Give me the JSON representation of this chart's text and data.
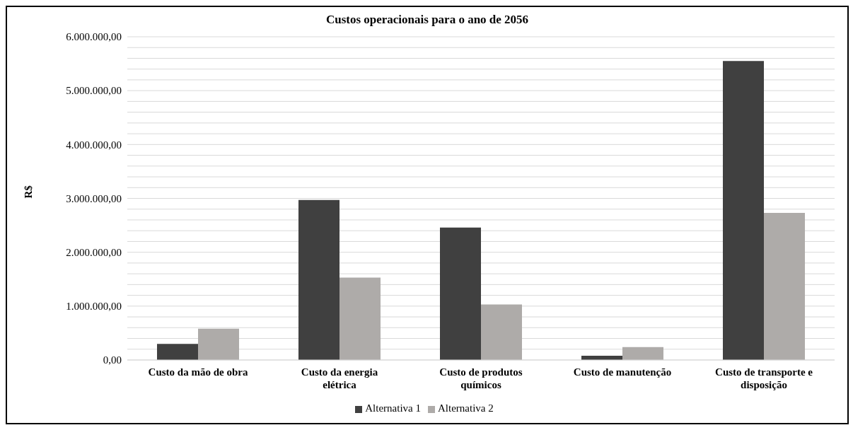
{
  "chart_data": {
    "type": "bar",
    "title": "Custos operacionais para o ano de 2056",
    "ylabel": "R$",
    "categories": [
      "Custo da mão de obra",
      "Custo da energia elétrica",
      "Custo de produtos químicos",
      "Custo de manutenção",
      "Custo de transporte e disposição"
    ],
    "series": [
      {
        "name": "Alternativa 1",
        "color": "#404040",
        "values": [
          300000,
          2970000,
          2460000,
          80000,
          5550000
        ]
      },
      {
        "name": "Alternativa 2",
        "color": "#aeaba9",
        "values": [
          580000,
          1530000,
          1030000,
          240000,
          2730000
        ]
      }
    ],
    "ylim": [
      0,
      6000000
    ],
    "yticks": [
      {
        "value": 0,
        "label": "0,00"
      },
      {
        "value": 200000,
        "label": null
      },
      {
        "value": 400000,
        "label": null
      },
      {
        "value": 600000,
        "label": null
      },
      {
        "value": 800000,
        "label": null
      },
      {
        "value": 1000000,
        "label": "1.000.000,00"
      },
      {
        "value": 1200000,
        "label": null
      },
      {
        "value": 1400000,
        "label": null
      },
      {
        "value": 1600000,
        "label": null
      },
      {
        "value": 1800000,
        "label": null
      },
      {
        "value": 2000000,
        "label": "2.000.000,00"
      },
      {
        "value": 2200000,
        "label": null
      },
      {
        "value": 2400000,
        "label": null
      },
      {
        "value": 2600000,
        "label": null
      },
      {
        "value": 2800000,
        "label": null
      },
      {
        "value": 3000000,
        "label": "3.000.000,00"
      },
      {
        "value": 3200000,
        "label": null
      },
      {
        "value": 3400000,
        "label": null
      },
      {
        "value": 3600000,
        "label": null
      },
      {
        "value": 3800000,
        "label": null
      },
      {
        "value": 4000000,
        "label": "4.000.000,00"
      },
      {
        "value": 4200000,
        "label": null
      },
      {
        "value": 4400000,
        "label": null
      },
      {
        "value": 4600000,
        "label": null
      },
      {
        "value": 4800000,
        "label": null
      },
      {
        "value": 5000000,
        "label": "5.000.000,00"
      },
      {
        "value": 5200000,
        "label": null
      },
      {
        "value": 5400000,
        "label": null
      },
      {
        "value": 5600000,
        "label": null
      },
      {
        "value": 5800000,
        "label": null
      },
      {
        "value": 6000000,
        "label": "6.000.000,00"
      }
    ],
    "grid": "y",
    "legend": "bottom"
  }
}
